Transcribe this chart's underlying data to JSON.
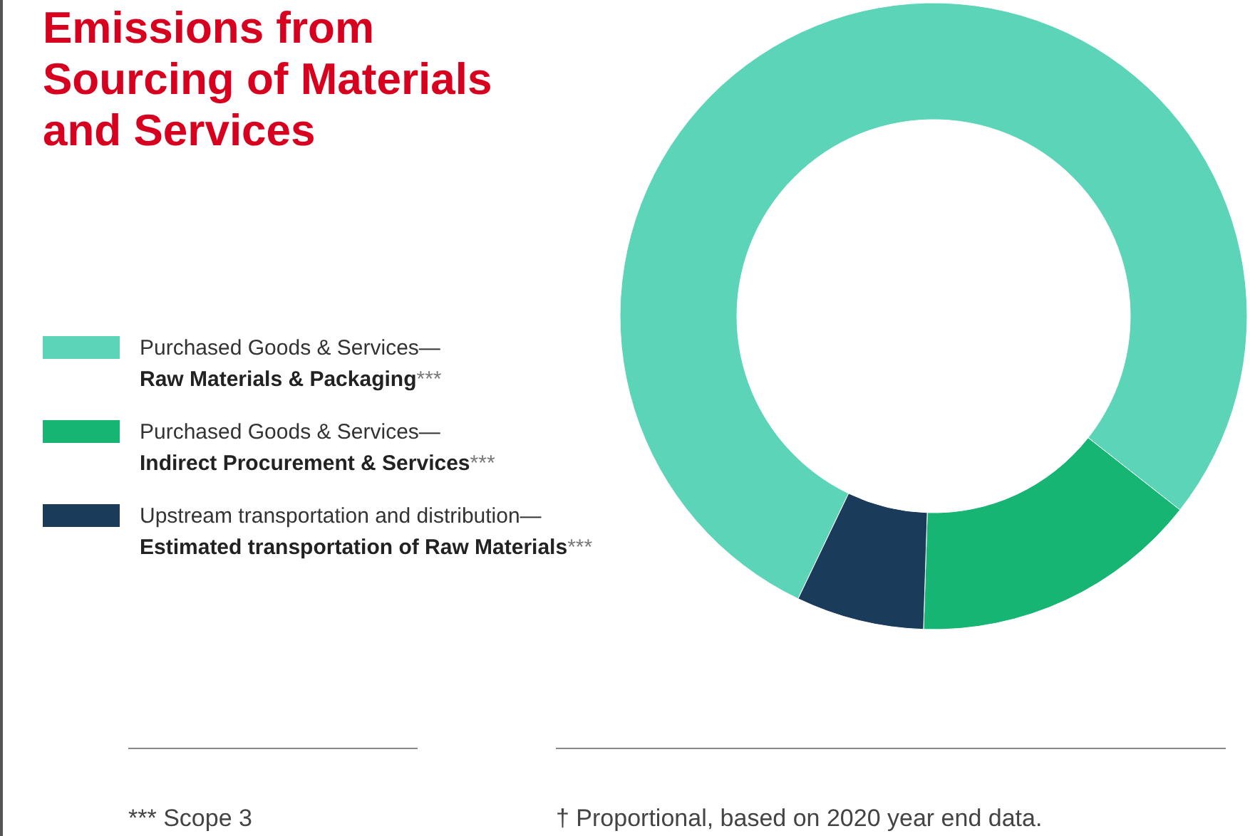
{
  "chart_data": {
    "type": "donut",
    "title": "Emissions from Sourcing of Materials and Services",
    "categories": [
      "Purchased Goods & Services—Raw Materials & Packaging***",
      "Purchased Goods & Services—Indirect Procurement & Services***",
      "Upstream transportation and distribution—Estimated transportation of Raw Materials***"
    ],
    "values": [
      78.5,
      14.9,
      6.6
    ],
    "colors": [
      "#5cd4b8",
      "#17b573",
      "#1a3c5a"
    ],
    "legend": "left",
    "annotations": [
      "*** Scope 3",
      "† Proportional, based on 2020 year end data."
    ]
  }
}
